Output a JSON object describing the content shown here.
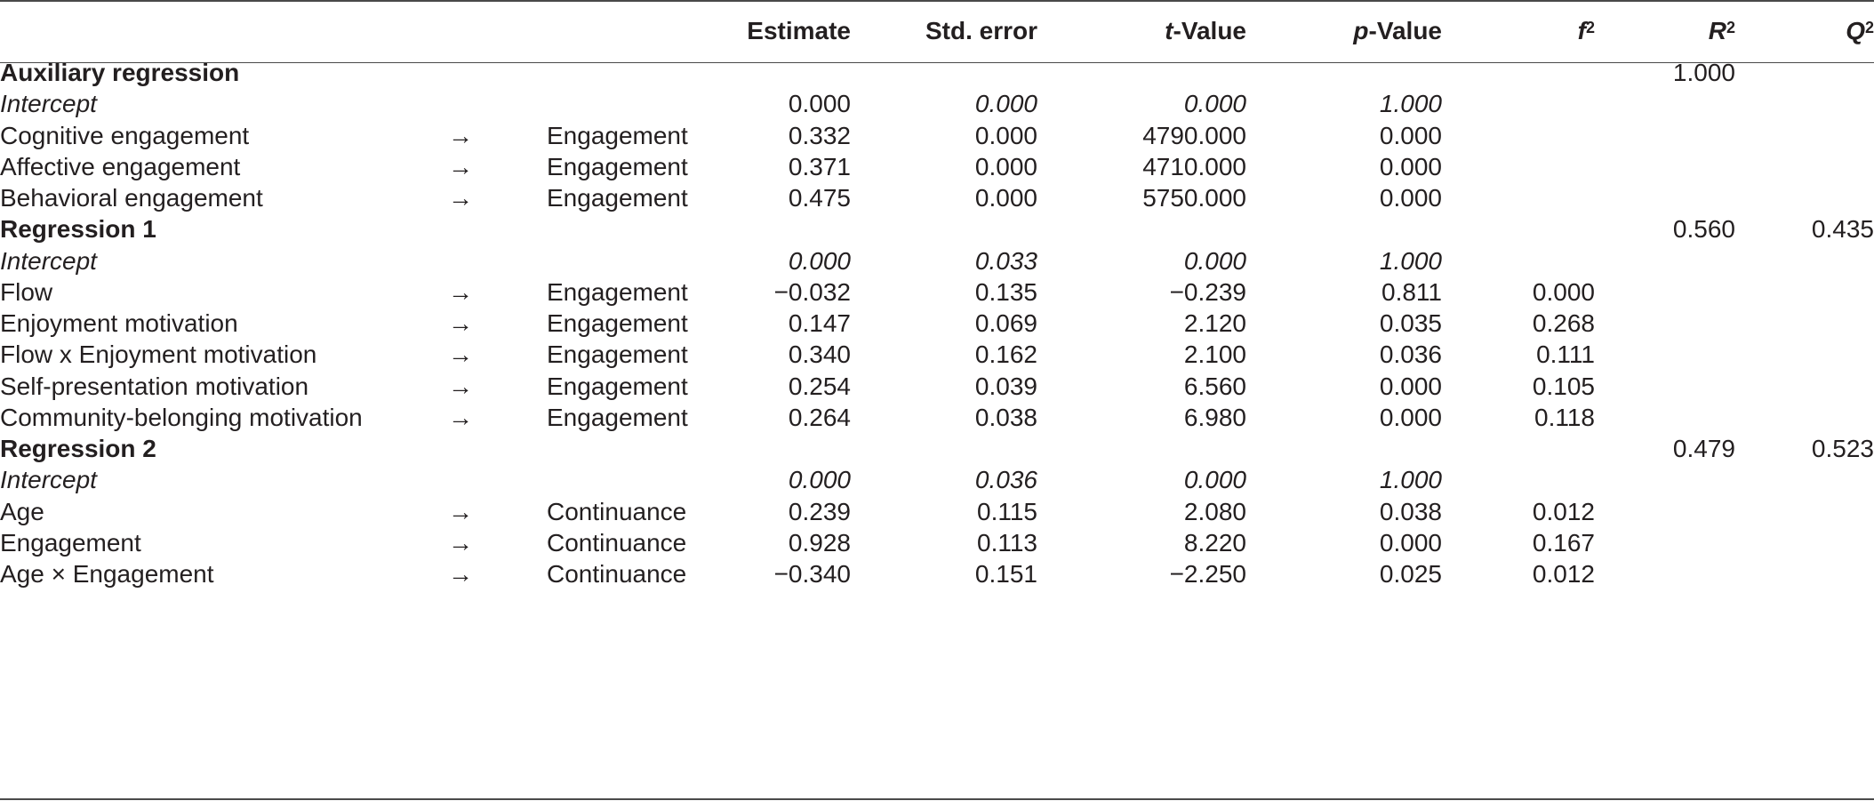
{
  "headers": {
    "estimate": "Estimate",
    "std_error": "Std. error",
    "t_value_var": "t",
    "t_value_rest": "-Value",
    "p_value_var": "p",
    "p_value_rest": "-Value",
    "f2_base": "f",
    "f2_sup": "2",
    "r2_base": "R",
    "r2_sup": "2",
    "q2_base": "Q",
    "q2_sup": "2"
  },
  "rows": [
    {
      "label": "Auxiliary regression",
      "kind": "section",
      "r2": "1.000",
      "q2": ""
    },
    {
      "label": "Intercept",
      "kind": "intercept",
      "arrow": "",
      "target": "",
      "estimate": "0.000",
      "se": "0.000",
      "t": "0.000",
      "p": "1.000",
      "f2": "",
      "estimate_italic": false
    },
    {
      "label": "Cognitive engagement",
      "kind": "path",
      "arrow": "→",
      "target": "Engagement",
      "estimate": "0.332",
      "se": "0.000",
      "t": "4790.000",
      "p": "0.000",
      "f2": ""
    },
    {
      "label": "Affective engagement",
      "kind": "path",
      "arrow": "→",
      "target": "Engagement",
      "estimate": "0.371",
      "se": "0.000",
      "t": "4710.000",
      "p": "0.000",
      "f2": ""
    },
    {
      "label": "Behavioral engagement",
      "kind": "path",
      "arrow": "→",
      "target": "Engagement",
      "estimate": "0.475",
      "se": "0.000",
      "t": "5750.000",
      "p": "0.000",
      "f2": ""
    },
    {
      "label": "Regression 1",
      "kind": "section",
      "r2": "0.560",
      "q2": "0.435"
    },
    {
      "label": "Intercept",
      "kind": "intercept",
      "arrow": "",
      "target": "",
      "estimate": "0.000",
      "se": "0.033",
      "t": "0.000",
      "p": "1.000",
      "f2": "",
      "estimate_italic": true
    },
    {
      "label": "Flow",
      "kind": "path",
      "arrow": "→",
      "target": "Engagement",
      "estimate": "−0.032",
      "se": "0.135",
      "t": "−0.239",
      "p": "0.811",
      "f2": "0.000"
    },
    {
      "label": "Enjoyment motivation",
      "kind": "path",
      "arrow": "→",
      "target": "Engagement",
      "estimate": "0.147",
      "se": "0.069",
      "t": "2.120",
      "p": "0.035",
      "f2": "0.268"
    },
    {
      "label": "Flow x Enjoyment motivation",
      "kind": "path",
      "arrow": "→",
      "target": "Engagement",
      "estimate": "0.340",
      "se": "0.162",
      "t": "2.100",
      "p": "0.036",
      "f2": "0.111"
    },
    {
      "label": "Self-presentation motivation",
      "kind": "path",
      "arrow": "→",
      "target": "Engagement",
      "estimate": "0.254",
      "se": "0.039",
      "t": "6.560",
      "p": "0.000",
      "f2": "0.105"
    },
    {
      "label": "Community-belonging motivation",
      "kind": "path",
      "arrow": "→",
      "target": "Engagement",
      "estimate": "0.264",
      "se": "0.038",
      "t": "6.980",
      "p": "0.000",
      "f2": "0.118"
    },
    {
      "label": "Regression 2",
      "kind": "section",
      "r2": "0.479",
      "q2": "0.523"
    },
    {
      "label": "Intercept",
      "kind": "intercept",
      "arrow": "",
      "target": "",
      "estimate": "0.000",
      "se": "0.036",
      "t": "0.000",
      "p": "1.000",
      "f2": "",
      "estimate_italic": true
    },
    {
      "label": "Age",
      "kind": "path",
      "arrow": "→",
      "target": "Continuance",
      "estimate": "0.239",
      "se": "0.115",
      "t": "2.080",
      "p": "0.038",
      "f2": "0.012"
    },
    {
      "label": "Engagement",
      "kind": "path",
      "arrow": "→",
      "target": "Continuance",
      "estimate": "0.928",
      "se": "0.113",
      "t": "8.220",
      "p": "0.000",
      "f2": "0.167"
    },
    {
      "label": "Age × Engagement",
      "kind": "path",
      "arrow": "→",
      "target": "Continuance",
      "estimate": "−0.340",
      "se": "0.151",
      "t": "−2.250",
      "p": "0.025",
      "f2": "0.012"
    }
  ]
}
